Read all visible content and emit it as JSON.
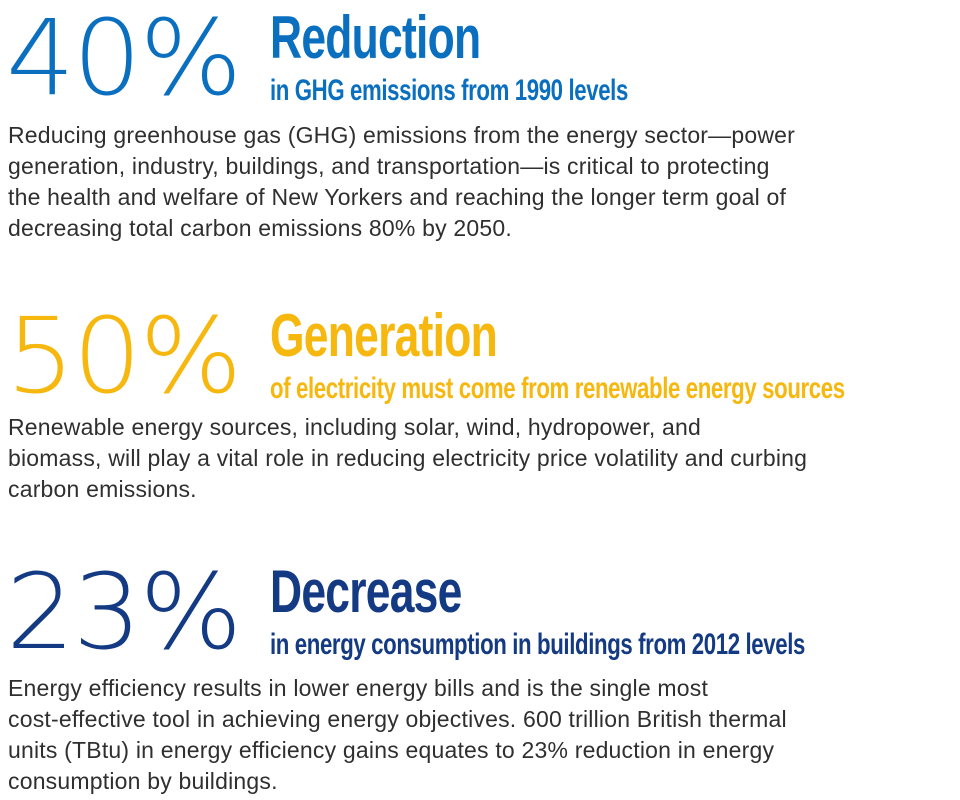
{
  "sections": [
    {
      "stat": "40%",
      "headline": "Reduction",
      "subhead": "in GHG emissions from 1990 levels",
      "lines": [
        "Reducing greenhouse gas (GHG) emissions from the energy sector—power",
        "generation, industry, buildings, and transportation—is critical to protecting",
        "the health and welfare of New Yorkers and reaching the longer term goal of",
        "decreasing total carbon emissions 80% by 2050."
      ],
      "color": "#0a6fbf"
    },
    {
      "stat": "50%",
      "headline": "Generation",
      "subhead": "of electricity must come from renewable energy sources",
      "lines": [
        "Renewable energy sources, including solar, wind, hydropower, and",
        "biomass, will play a vital role in reducing electricity price volatility and curbing",
        "carbon emissions."
      ],
      "color": "#f6b70f"
    },
    {
      "stat": "23%",
      "headline": "Decrease",
      "subhead": "in energy consumption in buildings from 2012 levels",
      "lines": [
        "Energy efficiency results in lower energy bills and is the single most",
        "cost-effective tool in achieving energy objectives. 600 trillion British thermal",
        "units (TBtu) in energy efficiency gains equates to 23% reduction in energy",
        "consumption by buildings."
      ],
      "color": "#143a84"
    }
  ]
}
